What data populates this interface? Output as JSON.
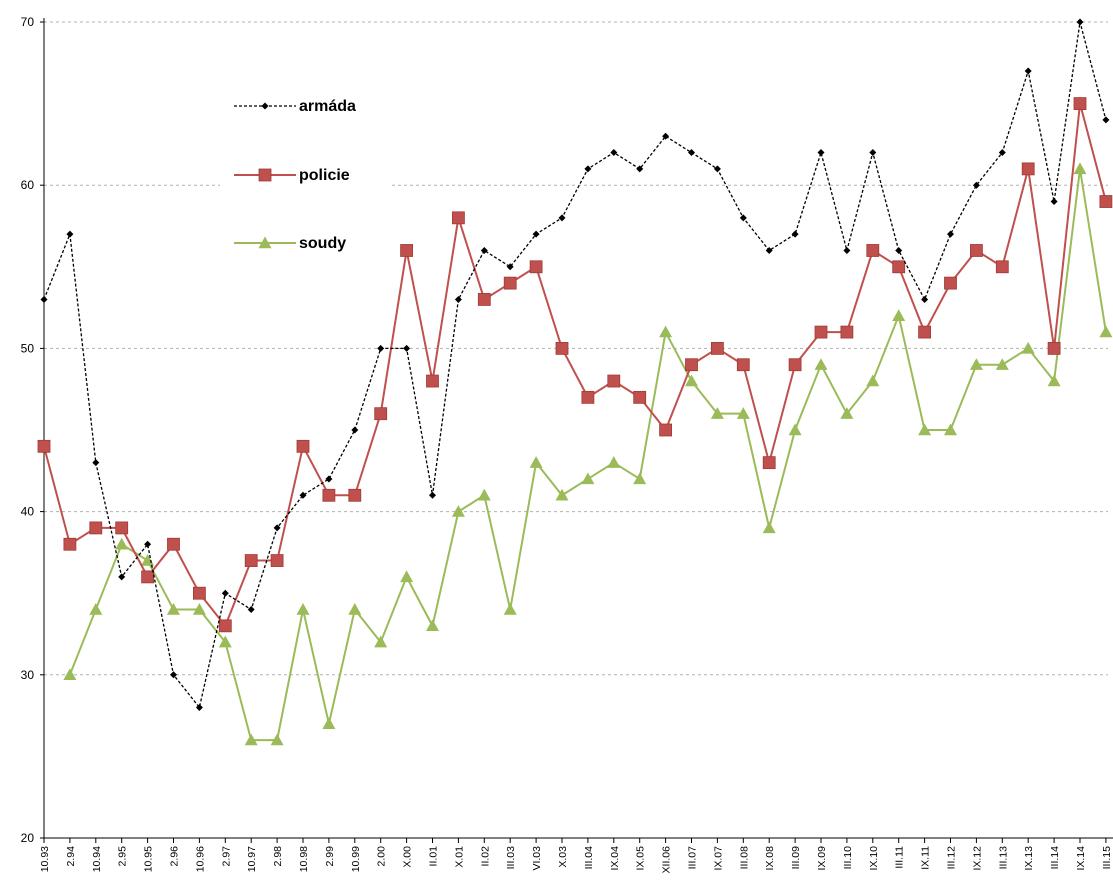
{
  "chart_data": {
    "type": "line",
    "title": "",
    "xlabel": "",
    "ylabel": "",
    "ylim": [
      20,
      70
    ],
    "yticks": [
      20,
      30,
      40,
      50,
      60,
      70
    ],
    "grid": "horizontal dashed",
    "legend_position": "top-left",
    "categories": [
      "10.93",
      "2.94",
      "10.94",
      "2.95",
      "10.95",
      "2.96",
      "10.96",
      "2.97",
      "10.97",
      "2.98",
      "10.98",
      "2.99",
      "10.99",
      "2.00",
      "X.00",
      "II.01",
      "X.01",
      "II.02",
      "III.03",
      "VI.03",
      "X.03",
      "III.04",
      "IX.04",
      "IX.05",
      "XII.06",
      "III.07",
      "IX.07",
      "III.08",
      "IX.08",
      "III.09",
      "IX.09",
      "III.10",
      "IX.10",
      "III.11",
      "IX.11",
      "III.12",
      "IX.12",
      "III.13",
      "IX.13",
      "III.14",
      "IX.14",
      "III.15"
    ],
    "series": [
      {
        "name": "armáda",
        "color": "#000000",
        "marker": "diamond",
        "dashed": true,
        "values": [
          53,
          57,
          43,
          36,
          38,
          30,
          28,
          35,
          34,
          39,
          41,
          42,
          45,
          50,
          50,
          41,
          53,
          56,
          55,
          57,
          58,
          61,
          62,
          61,
          63,
          62,
          61,
          58,
          56,
          57,
          62,
          56,
          62,
          56,
          53,
          57,
          60,
          62,
          67,
          59,
          70,
          64
        ]
      },
      {
        "name": "policie",
        "color": "#c0504d",
        "marker": "square",
        "dashed": false,
        "values": [
          44,
          38,
          39,
          39,
          36,
          38,
          35,
          33,
          37,
          37,
          44,
          41,
          41,
          46,
          56,
          48,
          58,
          53,
          54,
          55,
          50,
          47,
          48,
          47,
          45,
          49,
          50,
          49,
          43,
          49,
          51,
          51,
          56,
          55,
          51,
          54,
          56,
          55,
          61,
          50,
          65,
          59
        ]
      },
      {
        "name": "soudy",
        "color": "#9bbb59",
        "marker": "triangle",
        "dashed": false,
        "values": [
          null,
          30,
          34,
          38,
          37,
          34,
          34,
          32,
          26,
          26,
          34,
          27,
          34,
          32,
          36,
          33,
          40,
          41,
          34,
          43,
          41,
          42,
          43,
          42,
          51,
          48,
          46,
          46,
          39,
          45,
          49,
          46,
          48,
          52,
          45,
          45,
          49,
          49,
          50,
          48,
          61,
          51
        ]
      }
    ]
  }
}
